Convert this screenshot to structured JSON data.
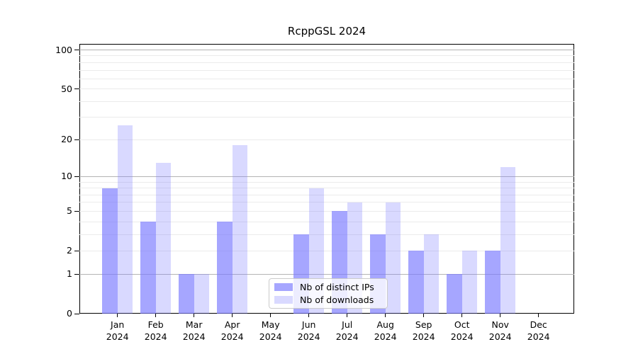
{
  "chart_data": {
    "type": "bar",
    "title": "RcppGSL 2024",
    "categories": [
      "Jan",
      "Feb",
      "Mar",
      "Apr",
      "May",
      "Jun",
      "Jul",
      "Aug",
      "Sep",
      "Oct",
      "Nov",
      "Dec"
    ],
    "year_label": "2024",
    "series": [
      {
        "name": "Nb of distinct IPs",
        "color": "rgba(119,119,255,0.65)",
        "values": [
          8,
          4,
          1,
          4,
          0,
          3,
          5,
          3,
          2,
          1,
          2,
          0
        ]
      },
      {
        "name": "Nb of downloads",
        "color": "rgba(119,119,255,0.28)",
        "values": [
          26,
          13,
          1,
          18,
          0,
          8,
          6,
          6,
          3,
          2,
          12,
          0
        ]
      }
    ],
    "y_scale": "log1p",
    "y_tick_values": [
      0,
      1,
      2,
      5,
      10,
      20,
      50,
      100
    ],
    "y_major_gridlines": [
      1,
      10,
      100
    ],
    "y_minor_gridlines": [
      2,
      3,
      4,
      5,
      6,
      7,
      8,
      9,
      20,
      30,
      40,
      50,
      60,
      70,
      80,
      90
    ],
    "ylim": [
      0,
      112
    ],
    "grid": true,
    "legend_position": "inside lower center",
    "colors": {
      "bar_base": "#7777ff",
      "major_grid": "#b4b4b4",
      "minor_grid": "#ebebeb",
      "axis": "#000000",
      "background": "#ffffff"
    }
  }
}
